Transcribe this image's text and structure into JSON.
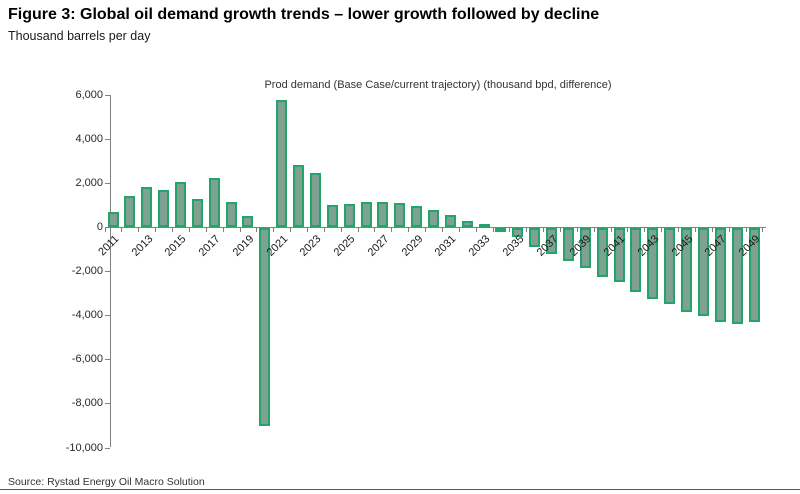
{
  "page": {
    "title": "Figure 3: Global oil demand growth trends – lower growth followed by decline",
    "subtitle": "Thousand barrels per day",
    "source": "Source: Rystad Energy Oil Macro Solution"
  },
  "chart_data": {
    "type": "bar",
    "title": "Prod demand (Base Case/current trajectory) (thousand bpd, difference)",
    "xlabel": "",
    "ylabel": "Thousand barrels per day (difference)",
    "categories": [
      2011,
      2012,
      2013,
      2014,
      2015,
      2016,
      2017,
      2018,
      2019,
      2020,
      2021,
      2022,
      2023,
      2024,
      2025,
      2026,
      2027,
      2028,
      2029,
      2030,
      2031,
      2032,
      2033,
      2034,
      2035,
      2036,
      2037,
      2038,
      2039,
      2040,
      2041,
      2042,
      2043,
      2044,
      2045,
      2046,
      2047,
      2048,
      2049
    ],
    "values": [
      700,
      1400,
      1800,
      1700,
      2050,
      1250,
      2200,
      1150,
      500,
      -9000,
      5750,
      2800,
      2450,
      1000,
      1050,
      1150,
      1150,
      1100,
      950,
      750,
      550,
      250,
      150,
      -150,
      -400,
      -850,
      -1200,
      -1500,
      -1800,
      -2200,
      -2450,
      -2900,
      -3200,
      -3450,
      -3800,
      -4000,
      -4250,
      -4350,
      -4250
    ],
    "ylim": [
      -10000,
      6000
    ],
    "ytick_step": 2000,
    "ytick_labels": [
      "6,000",
      "4,000",
      "2,000",
      "0",
      "-2,000",
      "-4,000",
      "-6,000",
      "-8,000",
      "-10,000"
    ],
    "xtick_label_years": [
      2011,
      2013,
      2015,
      2017,
      2019,
      2021,
      2023,
      2025,
      2027,
      2029,
      2031,
      2033,
      2035,
      2037,
      2039,
      2041,
      2043,
      2045,
      2047,
      2049
    ],
    "grid": false,
    "legend_position": "none",
    "bar_fill_color": "#7EA192",
    "bar_border_color": "#23A46B",
    "axis_color": "#808080"
  }
}
